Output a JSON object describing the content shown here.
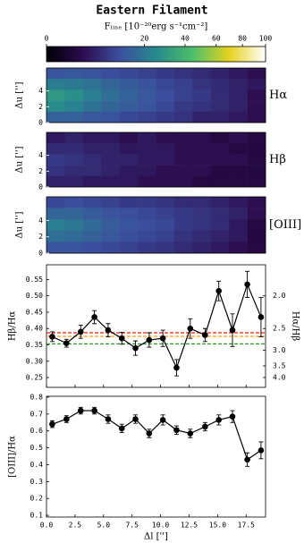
{
  "title": "Eastern Filament",
  "chart_data": [
    {
      "type": "colorbar",
      "label": "Fₗᵢₙₑ [10⁻²⁰erg s⁻¹cm⁻²]",
      "clim": [
        0,
        100
      ],
      "scale": "sqrt",
      "ticks": [
        0,
        20,
        40,
        60,
        80,
        100
      ],
      "colormap": [
        "#000004",
        "#2c0b4e",
        "#3b4f9e",
        "#26898d",
        "#4cbf6a",
        "#e6d21f",
        "#ffffff"
      ]
    },
    {
      "type": "image",
      "label": "Hα",
      "ylabel": "Δu ['']",
      "xlim": [
        0,
        19.2
      ],
      "ylim": [
        0,
        6.9
      ],
      "yticks": [
        0,
        2,
        4
      ],
      "grid": [
        [
          12,
          13,
          12,
          11,
          10,
          9,
          8,
          7,
          6,
          5,
          4,
          3
        ],
        [
          22,
          21,
          19,
          16,
          14,
          12,
          10,
          9,
          7,
          6,
          5,
          4
        ],
        [
          30,
          27,
          22,
          18,
          15,
          13,
          11,
          9,
          8,
          6,
          5,
          3
        ],
        [
          26,
          23,
          19,
          16,
          14,
          12,
          10,
          8,
          7,
          6,
          5,
          3
        ],
        [
          15,
          15,
          13,
          12,
          10,
          9,
          8,
          7,
          5,
          5,
          4,
          3
        ]
      ]
    },
    {
      "type": "image",
      "label": "Hβ",
      "ylabel": "Δu ['']",
      "xlim": [
        0,
        19.2
      ],
      "ylim": [
        0,
        6.9
      ],
      "yticks": [
        0,
        2,
        4
      ],
      "grid": [
        [
          4,
          5,
          4,
          4,
          3,
          4,
          3,
          3,
          3,
          2,
          3,
          2
        ],
        [
          6,
          6,
          5,
          5,
          4,
          4,
          4,
          3,
          3,
          3,
          2,
          2
        ],
        [
          8,
          7,
          6,
          5,
          5,
          4,
          4,
          3,
          3,
          3,
          3,
          2
        ],
        [
          7,
          6,
          6,
          5,
          4,
          4,
          3,
          3,
          3,
          2,
          2,
          2
        ],
        [
          5,
          5,
          4,
          4,
          4,
          3,
          3,
          3,
          2,
          2,
          2,
          2
        ]
      ]
    },
    {
      "type": "image",
      "label": "[OIII]",
      "ylabel": "Δu ['']",
      "xlim": [
        0,
        19.2
      ],
      "ylim": [
        0,
        6.9
      ],
      "yticks": [
        0,
        2,
        4
      ],
      "grid": [
        [
          10,
          11,
          10,
          9,
          8,
          8,
          7,
          6,
          6,
          5,
          4,
          3
        ],
        [
          16,
          16,
          14,
          12,
          11,
          10,
          9,
          8,
          7,
          6,
          5,
          3
        ],
        [
          22,
          20,
          17,
          14,
          12,
          11,
          10,
          8,
          7,
          6,
          4,
          2
        ],
        [
          18,
          17,
          15,
          13,
          11,
          10,
          9,
          7,
          6,
          5,
          4,
          2
        ],
        [
          12,
          12,
          11,
          10,
          9,
          8,
          7,
          6,
          5,
          4,
          3,
          2
        ]
      ]
    },
    {
      "type": "errorbar-line",
      "ylabel": "Hβ/Hα",
      "y2label": "Hα/Hβ",
      "color": "#000000",
      "x": [
        0.5,
        1.75,
        3.0,
        4.2,
        5.4,
        6.6,
        7.8,
        9.0,
        10.2,
        11.4,
        12.6,
        13.9,
        15.1,
        16.3,
        17.6,
        18.8
      ],
      "values": [
        0.375,
        0.355,
        0.39,
        0.435,
        0.395,
        0.37,
        0.34,
        0.365,
        0.37,
        0.28,
        0.4,
        0.38,
        0.515,
        0.395,
        0.535,
        0.435
      ],
      "errors": [
        0.015,
        0.012,
        0.02,
        0.02,
        0.02,
        0.018,
        0.022,
        0.022,
        0.025,
        0.025,
        0.03,
        0.02,
        0.03,
        0.05,
        0.04,
        0.06
      ],
      "xlim": [
        0,
        19.2
      ],
      "xticks": [
        {
          "value": 0,
          "label": "0.0"
        },
        2.5,
        {
          "value": 5,
          "label": "5.0"
        },
        7.5,
        {
          "value": 10,
          "label": "10.0"
        },
        12.5,
        {
          "value": 15,
          "label": "15.0"
        },
        17.5
      ],
      "show_xticklabels": false,
      "ylim": [
        0.22,
        0.595
      ],
      "yticks": [
        0.25,
        {
          "value": 0.3,
          "label": "0.30"
        },
        0.35,
        {
          "value": 0.4,
          "label": "0.40"
        },
        0.45,
        {
          "value": 0.5,
          "label": "0.50"
        },
        0.55
      ],
      "y2scale": "reciprocal",
      "y2ticks": [
        {
          "value": 2,
          "label": "2.0"
        },
        2.5,
        {
          "value": 3,
          "label": "3.0"
        },
        3.5,
        {
          "value": 4,
          "label": "4.0"
        }
      ],
      "reference_lines": [
        {
          "value": 0.387,
          "color": "#e41a1c"
        },
        {
          "value": 0.376,
          "color": "#ff9f1a"
        },
        {
          "value": 0.353,
          "color": "#2ca02c"
        }
      ]
    },
    {
      "type": "errorbar-line",
      "ylabel": "[OIII]/Hα",
      "xlabel": "Δl ['']",
      "color": "#000000",
      "x": [
        0.5,
        1.75,
        3.0,
        4.2,
        5.4,
        6.6,
        7.8,
        9.0,
        10.2,
        11.4,
        12.6,
        13.9,
        15.1,
        16.3,
        17.6,
        18.8
      ],
      "values": [
        0.64,
        0.67,
        0.72,
        0.72,
        0.67,
        0.615,
        0.67,
        0.585,
        0.665,
        0.605,
        0.585,
        0.625,
        0.665,
        0.685,
        0.43,
        0.485
      ],
      "errors": [
        0.02,
        0.02,
        0.02,
        0.02,
        0.025,
        0.025,
        0.025,
        0.025,
        0.03,
        0.025,
        0.025,
        0.025,
        0.03,
        0.035,
        0.04,
        0.05
      ],
      "xlim": [
        0,
        19.2
      ],
      "xticks": [
        {
          "value": 0,
          "label": "0.0"
        },
        2.5,
        {
          "value": 5,
          "label": "5.0"
        },
        7.5,
        {
          "value": 10,
          "label": "10.0"
        },
        12.5,
        {
          "value": 15,
          "label": "15.0"
        },
        17.5
      ],
      "show_xticklabels": true,
      "ylim": [
        0.09,
        0.805
      ],
      "yticks": [
        0.1,
        0.2,
        0.3,
        0.4,
        0.5,
        0.6,
        0.7,
        0.8
      ]
    }
  ]
}
